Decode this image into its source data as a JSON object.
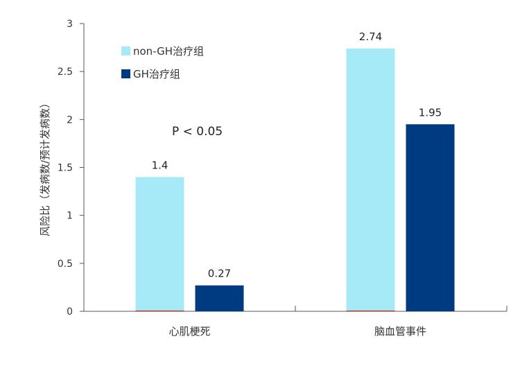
{
  "chart_data": {
    "type": "bar",
    "categories": [
      "心肌梗死",
      "脑血管事件"
    ],
    "series": [
      {
        "name": "non-GH治疗组",
        "values": [
          1.4,
          2.74
        ],
        "color": "#a6eaf8"
      },
      {
        "name": "GH治疗组",
        "values": [
          0.27,
          1.95
        ],
        "color": "#003a80"
      }
    ],
    "data_labels": [
      [
        "1.4",
        "2.74"
      ],
      [
        "0.27",
        "1.95"
      ]
    ],
    "ylabel": "风险比（发病数/预计发病数）",
    "ylim": [
      0,
      3
    ],
    "yticks": [
      "0",
      "0.5",
      "1",
      "1.5",
      "2",
      "2.5",
      "3"
    ],
    "legend_position": "top-left",
    "annotation": "P < 0.05",
    "grid": false
  }
}
